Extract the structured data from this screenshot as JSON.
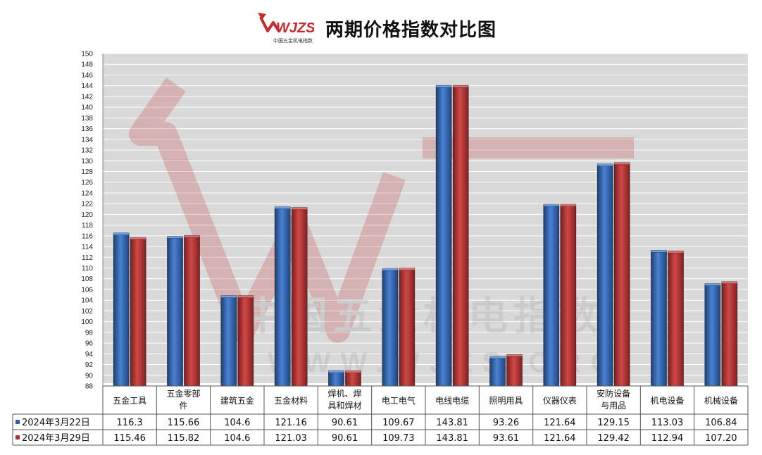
{
  "header": {
    "title": "两期价格指数对比图",
    "logo_text": "WJZS",
    "logo_subtext": "中国五金机电指数"
  },
  "watermark": {
    "cn": "中国五金机电指数",
    "url": "WWW.WJZS.ORG"
  },
  "colors": {
    "series1": "#2f5fa8",
    "series2": "#a83232",
    "plot_bg": "#d9d9d9",
    "grid": "#ffffff",
    "logo_red": "#c62a2a"
  },
  "chart_data": {
    "type": "bar",
    "title": "两期价格指数对比图",
    "categories": [
      [
        "五金工具"
      ],
      [
        "五金零部",
        "件"
      ],
      [
        "建筑五金"
      ],
      [
        "五金材料"
      ],
      [
        "焊机、焊",
        "具和焊材"
      ],
      [
        "电工电气"
      ],
      [
        "电线电缆"
      ],
      [
        "照明用具"
      ],
      [
        "仪器仪表"
      ],
      [
        "安防设备",
        "与用品"
      ],
      [
        "机电设备"
      ],
      [
        "机械设备"
      ]
    ],
    "series": [
      {
        "name": "2024年3月22日",
        "values": [
          116.3,
          115.66,
          104.6,
          121.16,
          90.61,
          109.67,
          143.81,
          93.26,
          121.64,
          129.15,
          113.03,
          106.84
        ],
        "labels": [
          "116.3",
          "115.66",
          "104.6",
          "121.16",
          "90.61",
          "109.67",
          "143.81",
          "93.26",
          "121.64",
          "129.15",
          "113.03",
          "106.84"
        ]
      },
      {
        "name": "2024年3月29日",
        "values": [
          115.46,
          115.82,
          104.6,
          121.03,
          90.61,
          109.73,
          143.81,
          93.61,
          121.64,
          129.42,
          112.94,
          107.2
        ],
        "labels": [
          "115.46",
          "115.82",
          "104.6",
          "121.03",
          "90.61",
          "109.73",
          "143.81",
          "93.61",
          "121.64",
          "129.42",
          "112.94",
          "107.20"
        ]
      }
    ],
    "ylim": [
      88,
      150
    ],
    "ytick_step": 2,
    "grid": true,
    "legend": "data-table-left"
  }
}
